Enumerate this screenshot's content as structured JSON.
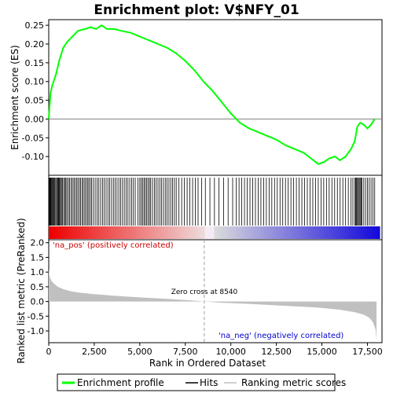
{
  "chart_data": {
    "type": "line",
    "title": "Enrichment plot: V$NFY_01",
    "top_panel": {
      "ylabel": "Enrichment score (ES)",
      "ylim": [
        -0.15,
        0.265
      ],
      "yticks": [
        -0.1,
        -0.05,
        0.0,
        0.05,
        0.1,
        0.15,
        0.2,
        0.25
      ],
      "ytick_labels": [
        "-0.10",
        "-0.05",
        "0.00",
        "0.05",
        "0.10",
        "0.15",
        "0.20",
        "0.25"
      ],
      "series": [
        {
          "name": "Enrichment profile",
          "color": "#00ff00",
          "x": [
            0,
            100,
            200,
            400,
            600,
            800,
            1000,
            1300,
            1600,
            2000,
            2300,
            2600,
            2900,
            3200,
            3600,
            4000,
            4500,
            5000,
            5500,
            6000,
            6500,
            7000,
            7500,
            8000,
            8500,
            9000,
            9500,
            10000,
            10500,
            11000,
            11500,
            12000,
            12500,
            13000,
            13500,
            14000,
            14400,
            14800,
            15100,
            15400,
            15700,
            16000,
            16300,
            16600,
            16800,
            16950,
            17100,
            17300,
            17500,
            17700,
            17900
          ],
          "y": [
            0.0,
            0.07,
            0.09,
            0.12,
            0.16,
            0.19,
            0.205,
            0.22,
            0.235,
            0.24,
            0.245,
            0.24,
            0.25,
            0.24,
            0.24,
            0.235,
            0.23,
            0.22,
            0.21,
            0.2,
            0.19,
            0.175,
            0.155,
            0.13,
            0.1,
            0.075,
            0.045,
            0.015,
            -0.01,
            -0.025,
            -0.035,
            -0.045,
            -0.055,
            -0.07,
            -0.08,
            -0.09,
            -0.105,
            -0.12,
            -0.115,
            -0.105,
            -0.1,
            -0.11,
            -0.1,
            -0.08,
            -0.06,
            -0.02,
            -0.01,
            -0.015,
            -0.025,
            -0.015,
            0.0
          ]
        }
      ]
    },
    "hits_positions": [
      5,
      30,
      60,
      90,
      120,
      160,
      200,
      240,
      280,
      320,
      380,
      430,
      480,
      520,
      560,
      600,
      650,
      700,
      760,
      820,
      880,
      940,
      1000,
      1080,
      1150,
      1230,
      1300,
      1380,
      1450,
      1530,
      1600,
      1680,
      1750,
      1830,
      1900,
      1980,
      2050,
      2130,
      2200,
      2280,
      2350,
      2450,
      2550,
      2650,
      2750,
      2850,
      2950,
      3050,
      3150,
      3250,
      3350,
      3450,
      3550,
      3650,
      3750,
      3850,
      3950,
      4050,
      4150,
      4250,
      4350,
      4450,
      4550,
      4650,
      4750,
      4900,
      5000,
      5080,
      5150,
      5230,
      5300,
      5380,
      5450,
      5530,
      5600,
      5700,
      5800,
      5900,
      6000,
      6100,
      6200,
      6300,
      6400,
      6500,
      6600,
      6700,
      6800,
      6900,
      7000,
      7150,
      7300,
      7450,
      7600,
      7750,
      7900,
      8050,
      8200,
      8400,
      8600,
      8850,
      9100,
      9350,
      9600,
      9850,
      10100,
      10300,
      10450,
      10600,
      10750,
      10900,
      11050,
      11200,
      11350,
      11500,
      11650,
      11800,
      11950,
      12100,
      12250,
      12400,
      12550,
      12700,
      12850,
      13000,
      13150,
      13300,
      13450,
      13600,
      13750,
      13900,
      14050,
      14200,
      14350,
      14500,
      14650,
      14800,
      14950,
      15100,
      15250,
      15400,
      15550,
      15700,
      15850,
      16000,
      16150,
      16300,
      16450,
      16600,
      16700,
      16800,
      16850,
      16900,
      16950,
      17000,
      17050,
      17100,
      17150,
      17200,
      17300,
      17400,
      17500,
      17600,
      17700,
      17800,
      17900
    ],
    "bottom_panel": {
      "ylabel": "Ranked list metric (PreRanked)",
      "xlabel": "Rank in Ordered Dataset",
      "ylim": [
        -1.4,
        2.1
      ],
      "yticks": [
        -1.0,
        -0.5,
        0.0,
        0.5,
        1.0,
        1.5,
        2.0
      ],
      "ytick_labels": [
        "-1.0",
        "-0.5",
        "0.0",
        "0.5",
        "1.0",
        "1.5",
        "2.0"
      ],
      "xlim": [
        0,
        18300
      ],
      "xticks": [
        0,
        2500,
        5000,
        7500,
        10000,
        12500,
        15000,
        17500
      ],
      "xtick_labels": [
        "0",
        "2,500",
        "5,000",
        "7,500",
        "10,000",
        "12,500",
        "15,000",
        "17,500"
      ],
      "metric_x": [
        0,
        50,
        150,
        300,
        500,
        800,
        1200,
        1700,
        2500,
        3500,
        5000,
        6500,
        8000,
        8540,
        9500,
        11000,
        12500,
        14000,
        15000,
        16000,
        16800,
        17300,
        17600,
        17800,
        17950,
        18000
      ],
      "metric_y": [
        1.1,
        0.85,
        0.7,
        0.6,
        0.5,
        0.42,
        0.35,
        0.3,
        0.25,
        0.2,
        0.14,
        0.09,
        0.03,
        0.0,
        -0.04,
        -0.08,
        -0.13,
        -0.18,
        -0.22,
        -0.28,
        -0.36,
        -0.45,
        -0.55,
        -0.7,
        -0.95,
        -1.3
      ],
      "zero_cross_label": "Zero cross at 8540",
      "zero_cross": 8540,
      "pos_label": "'na_pos' (positively correlated)",
      "neg_label": "'na_neg' (negatively correlated)"
    },
    "legend": {
      "items": [
        {
          "label": "Enrichment profile",
          "color": "#00ff00"
        },
        {
          "label": "Hits",
          "color": "#000000"
        },
        {
          "label": "Ranking metric scores",
          "color": "#c0c0c0"
        }
      ],
      "placement": "bottom"
    }
  },
  "colors": {
    "pos_label_color": "#cc0000",
    "neg_label_color": "#0000cc",
    "fill_gray": "#c0c0c0",
    "bar_red": "#ee0000",
    "bar_blue": "#2a2acc",
    "bar_navy": "#1a0acc"
  }
}
